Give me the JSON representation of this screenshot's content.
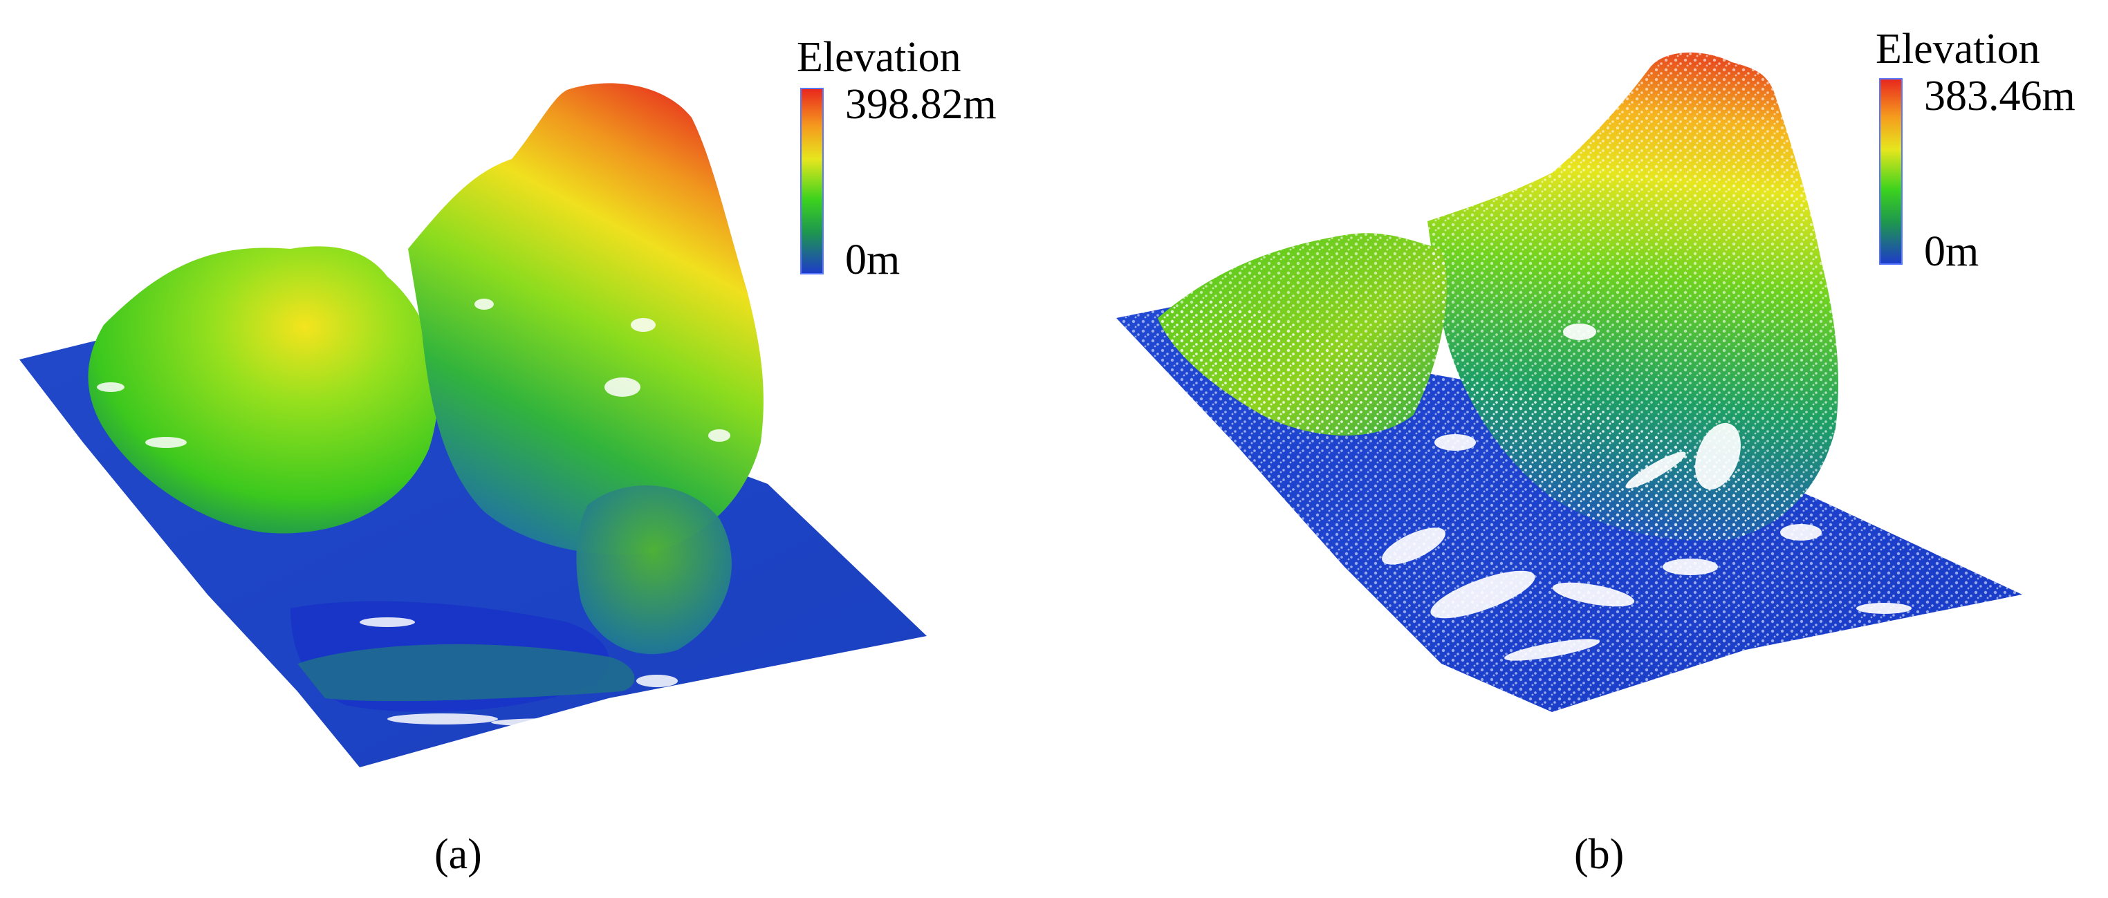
{
  "panels": [
    {
      "id": "a",
      "caption": "(a)",
      "legend": {
        "title": "Elevation",
        "max_label": "398.82m",
        "min_label": "0m",
        "max": 398.82,
        "min": 0
      }
    },
    {
      "id": "b",
      "caption": "(b)",
      "legend": {
        "title": "Elevation",
        "max_label": "383.46m",
        "min_label": "0m",
        "max": 383.46,
        "min": 0
      }
    }
  ],
  "colors": {
    "high": "#e8281e",
    "mid_high": "#ffd21e",
    "mid": "#36d21e",
    "low": "#1a3cd2"
  }
}
